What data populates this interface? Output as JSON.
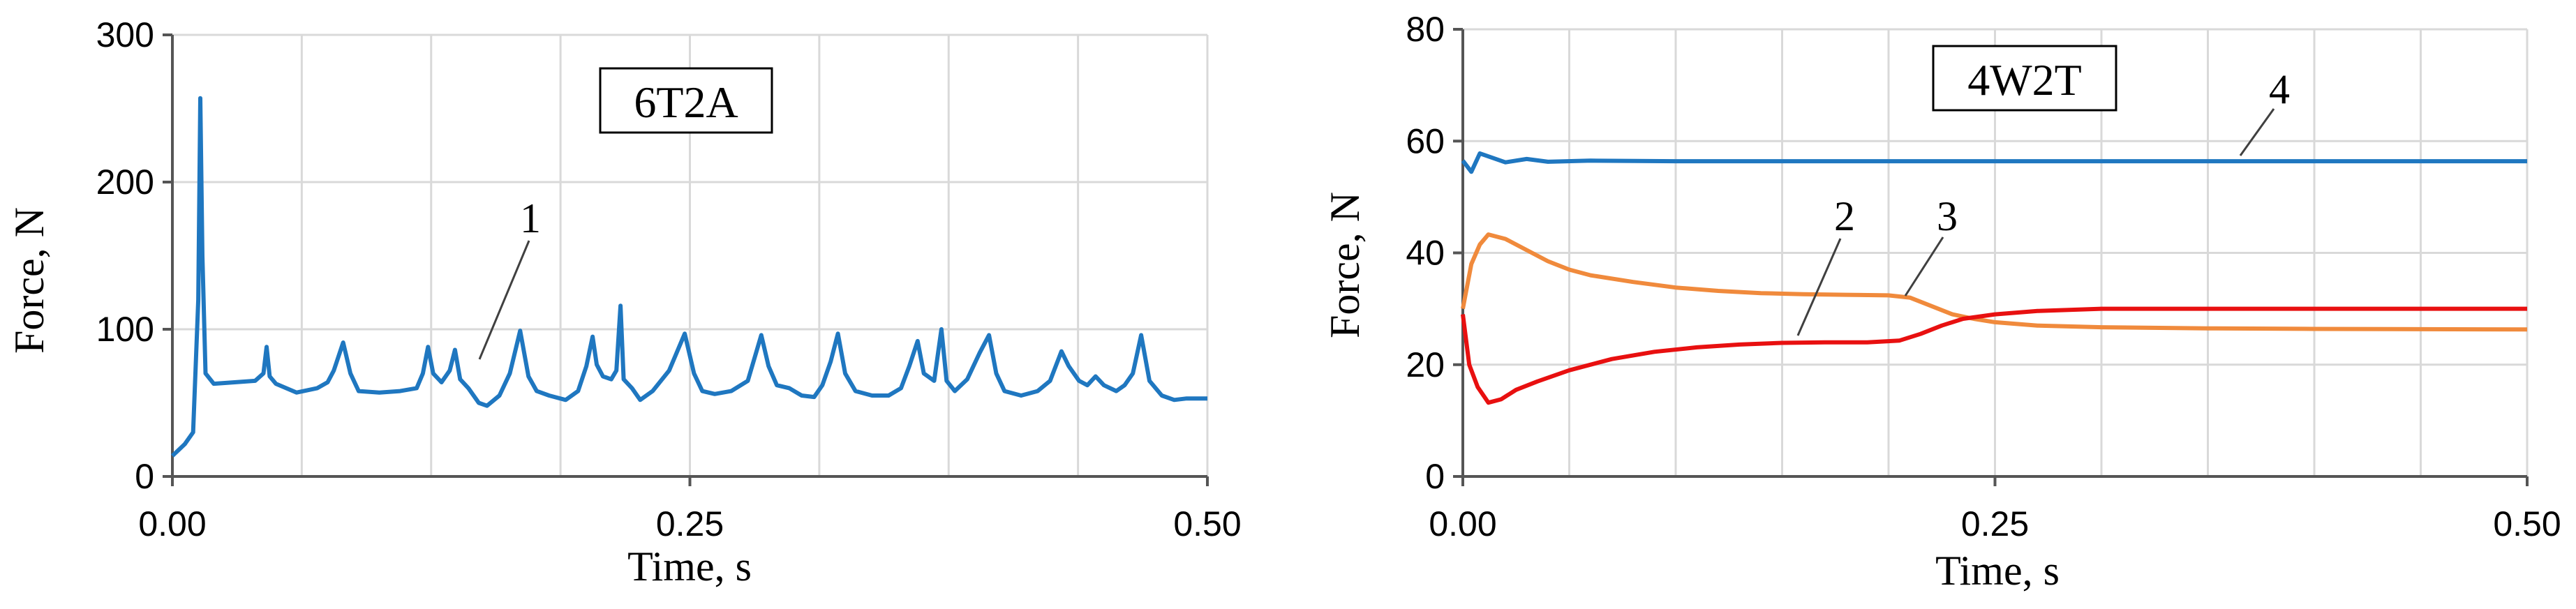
{
  "chart_data": [
    {
      "type": "line",
      "title": "",
      "box_label": "6T2A",
      "xlabel": "Time, s",
      "ylabel": "Force, N",
      "xlim": [
        0,
        0.5
      ],
      "ylim": [
        0,
        300
      ],
      "x_ticks": [
        "0.00",
        "0.25",
        "0.50"
      ],
      "y_ticks": [
        "0",
        "100",
        "200",
        "300"
      ],
      "grid": true,
      "series": [
        {
          "label": "1",
          "color": "#1f77c0",
          "points": [
            [
              0,
              14
            ],
            [
              0.006,
              22
            ],
            [
              0.01,
              30
            ],
            [
              0.0125,
              120
            ],
            [
              0.0135,
              257
            ],
            [
              0.0145,
              150
            ],
            [
              0.016,
              70
            ],
            [
              0.02,
              63
            ],
            [
              0.03,
              64
            ],
            [
              0.04,
              65
            ],
            [
              0.044,
              70
            ],
            [
              0.0455,
              88
            ],
            [
              0.047,
              68
            ],
            [
              0.05,
              63
            ],
            [
              0.06,
              57
            ],
            [
              0.07,
              60
            ],
            [
              0.075,
              64
            ],
            [
              0.078,
              72
            ],
            [
              0.0825,
              91
            ],
            [
              0.086,
              70
            ],
            [
              0.09,
              58
            ],
            [
              0.1,
              57
            ],
            [
              0.11,
              58
            ],
            [
              0.118,
              60
            ],
            [
              0.121,
              70
            ],
            [
              0.1235,
              88
            ],
            [
              0.126,
              70
            ],
            [
              0.13,
              64
            ],
            [
              0.134,
              72
            ],
            [
              0.1365,
              86
            ],
            [
              0.139,
              66
            ],
            [
              0.143,
              60
            ],
            [
              0.148,
              50
            ],
            [
              0.152,
              48
            ],
            [
              0.158,
              55
            ],
            [
              0.163,
              70
            ],
            [
              0.168,
              99
            ],
            [
              0.172,
              68
            ],
            [
              0.176,
              58
            ],
            [
              0.182,
              55
            ],
            [
              0.19,
              52
            ],
            [
              0.196,
              58
            ],
            [
              0.2,
              75
            ],
            [
              0.203,
              95
            ],
            [
              0.205,
              76
            ],
            [
              0.208,
              68
            ],
            [
              0.212,
              66
            ],
            [
              0.2145,
              72
            ],
            [
              0.2165,
              116
            ],
            [
              0.218,
              66
            ],
            [
              0.222,
              60
            ],
            [
              0.226,
              52
            ],
            [
              0.232,
              58
            ],
            [
              0.24,
              72
            ],
            [
              0.2475,
              97
            ],
            [
              0.252,
              70
            ],
            [
              0.256,
              58
            ],
            [
              0.262,
              56
            ],
            [
              0.27,
              58
            ],
            [
              0.278,
              65
            ],
            [
              0.2845,
              96
            ],
            [
              0.288,
              75
            ],
            [
              0.292,
              62
            ],
            [
              0.298,
              60
            ],
            [
              0.304,
              55
            ],
            [
              0.31,
              54
            ],
            [
              0.314,
              62
            ],
            [
              0.318,
              78
            ],
            [
              0.3215,
              97
            ],
            [
              0.325,
              70
            ],
            [
              0.33,
              58
            ],
            [
              0.338,
              55
            ],
            [
              0.346,
              55
            ],
            [
              0.352,
              60
            ],
            [
              0.356,
              75
            ],
            [
              0.36,
              92
            ],
            [
              0.363,
              70
            ],
            [
              0.368,
              65
            ],
            [
              0.3715,
              100
            ],
            [
              0.374,
              65
            ],
            [
              0.378,
              58
            ],
            [
              0.384,
              66
            ],
            [
              0.39,
              84
            ],
            [
              0.3945,
              96
            ],
            [
              0.398,
              70
            ],
            [
              0.402,
              58
            ],
            [
              0.41,
              55
            ],
            [
              0.418,
              58
            ],
            [
              0.424,
              65
            ],
            [
              0.4295,
              85
            ],
            [
              0.433,
              75
            ],
            [
              0.438,
              65
            ],
            [
              0.442,
              62
            ],
            [
              0.446,
              68
            ],
            [
              0.45,
              62
            ],
            [
              0.456,
              58
            ],
            [
              0.46,
              62
            ],
            [
              0.464,
              70
            ],
            [
              0.468,
              96
            ],
            [
              0.472,
              65
            ],
            [
              0.478,
              55
            ],
            [
              0.484,
              52
            ],
            [
              0.49,
              53
            ],
            [
              0.5,
              53
            ]
          ]
        }
      ],
      "annotations": [
        {
          "text": "1"
        }
      ]
    },
    {
      "type": "line",
      "title": "",
      "box_label": "4W2T",
      "xlabel": "Time, s",
      "ylabel": "Force, N",
      "xlim": [
        0,
        0.5
      ],
      "ylim": [
        0,
        80
      ],
      "x_ticks": [
        "0.00",
        "0.25",
        "0.50"
      ],
      "y_ticks": [
        "0",
        "20",
        "40",
        "60",
        "80"
      ],
      "grid": true,
      "series": [
        {
          "label": "4",
          "color": "#1f77c0",
          "points": [
            [
              0,
              56.5
            ],
            [
              0.004,
              54.5
            ],
            [
              0.008,
              57.8
            ],
            [
              0.014,
              57
            ],
            [
              0.02,
              56.2
            ],
            [
              0.03,
              56.8
            ],
            [
              0.04,
              56.3
            ],
            [
              0.06,
              56.5
            ],
            [
              0.1,
              56.4
            ],
            [
              0.2,
              56.4
            ],
            [
              0.3,
              56.4
            ],
            [
              0.4,
              56.4
            ],
            [
              0.5,
              56.4
            ]
          ]
        },
        {
          "label": "3",
          "color": "#f08a3c",
          "points": [
            [
              0,
              30
            ],
            [
              0.004,
              38
            ],
            [
              0.008,
              41.5
            ],
            [
              0.012,
              43.3
            ],
            [
              0.02,
              42.5
            ],
            [
              0.03,
              40.5
            ],
            [
              0.04,
              38.5
            ],
            [
              0.05,
              37
            ],
            [
              0.06,
              36
            ],
            [
              0.08,
              34.8
            ],
            [
              0.1,
              33.8
            ],
            [
              0.12,
              33.2
            ],
            [
              0.14,
              32.8
            ],
            [
              0.16,
              32.6
            ],
            [
              0.18,
              32.5
            ],
            [
              0.2,
              32.4
            ],
            [
              0.21,
              32
            ],
            [
              0.22,
              30.5
            ],
            [
              0.23,
              29
            ],
            [
              0.24,
              28.2
            ],
            [
              0.25,
              27.6
            ],
            [
              0.27,
              27
            ],
            [
              0.3,
              26.7
            ],
            [
              0.35,
              26.5
            ],
            [
              0.4,
              26.4
            ],
            [
              0.5,
              26.3
            ]
          ]
        },
        {
          "label": "2",
          "color": "#e81010",
          "points": [
            [
              0,
              29
            ],
            [
              0.003,
              20
            ],
            [
              0.007,
              16
            ],
            [
              0.012,
              13.2
            ],
            [
              0.018,
              13.8
            ],
            [
              0.025,
              15.5
            ],
            [
              0.035,
              17
            ],
            [
              0.05,
              19
            ],
            [
              0.07,
              21
            ],
            [
              0.09,
              22.3
            ],
            [
              0.11,
              23.1
            ],
            [
              0.13,
              23.6
            ],
            [
              0.15,
              23.9
            ],
            [
              0.17,
              24
            ],
            [
              0.19,
              24
            ],
            [
              0.205,
              24.3
            ],
            [
              0.215,
              25.5
            ],
            [
              0.225,
              27
            ],
            [
              0.235,
              28.2
            ],
            [
              0.25,
              29
            ],
            [
              0.27,
              29.6
            ],
            [
              0.3,
              30
            ],
            [
              0.35,
              30
            ],
            [
              0.4,
              30
            ],
            [
              0.5,
              30
            ]
          ]
        }
      ],
      "annotations": [
        {
          "text": "2"
        },
        {
          "text": "3"
        },
        {
          "text": "4"
        }
      ]
    }
  ]
}
